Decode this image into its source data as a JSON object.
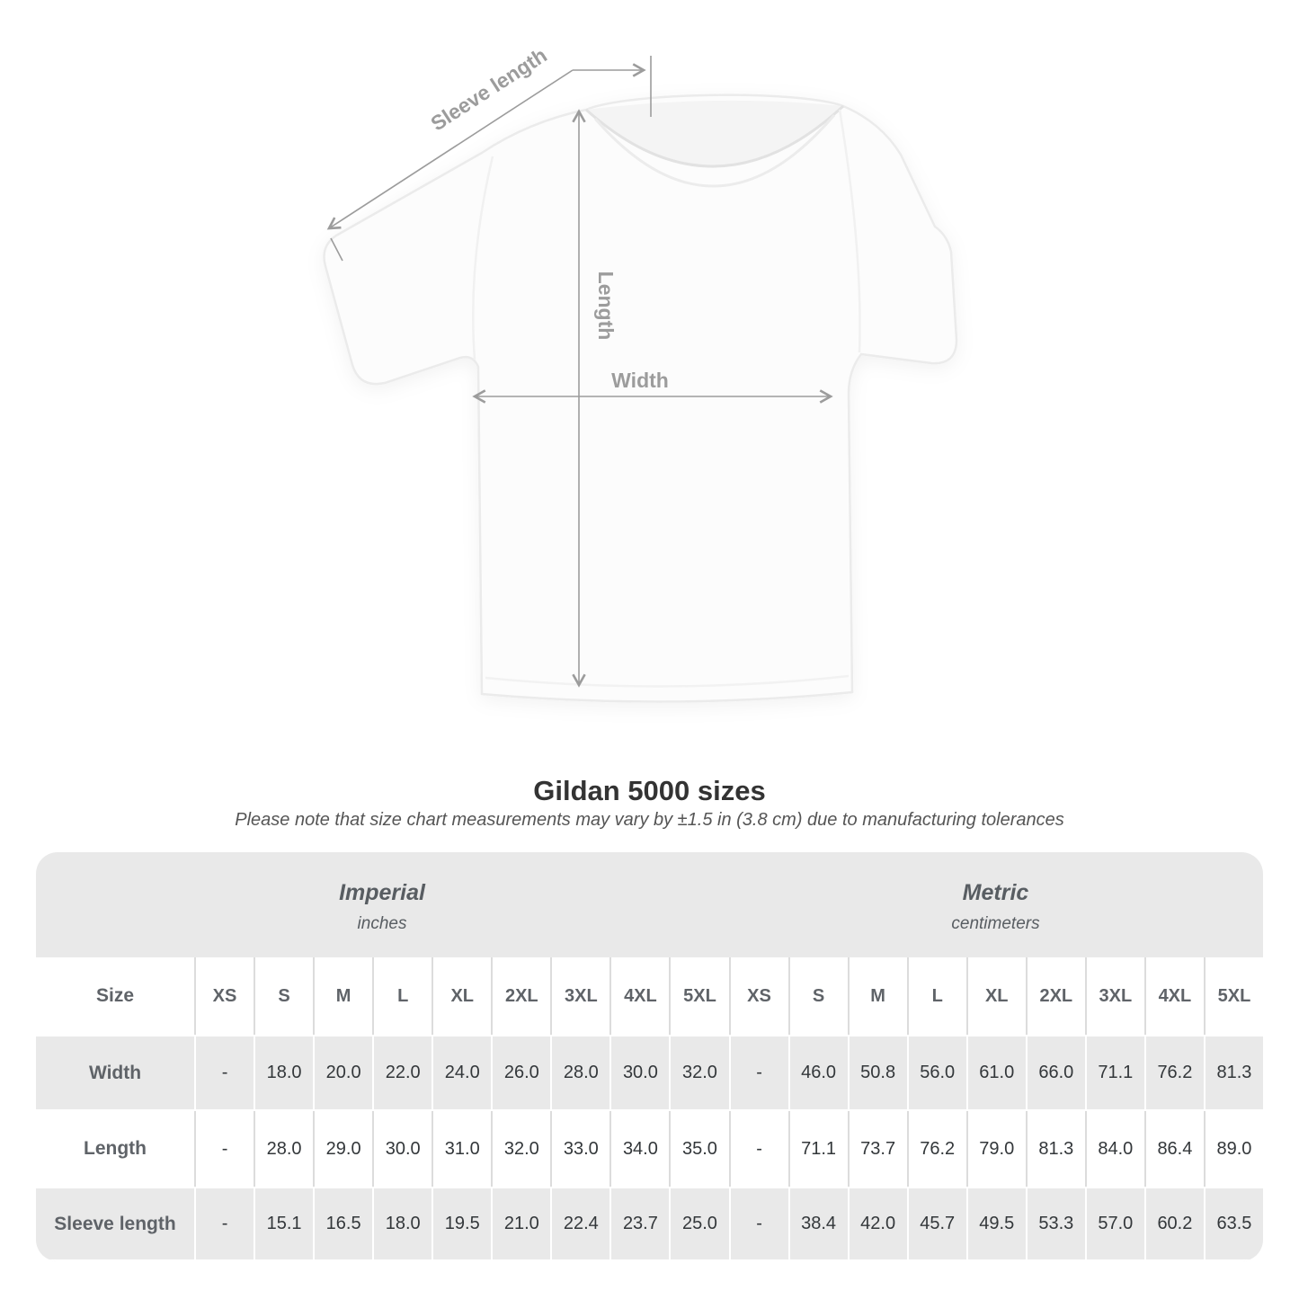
{
  "colors": {
    "band_gray": "#e9e9e9",
    "measure_line_gray": "#9c9c9c",
    "title_text": "#333333",
    "subtitle_text": "#555555",
    "header_text": "#5f6368",
    "value_text": "#33373a"
  },
  "diagram": {
    "sleeve_length_label": "Sleeve length",
    "length_label": "Length",
    "width_label": "Width"
  },
  "title": "Gildan 5000 sizes",
  "subtitle": "Please note that size chart measurements may vary by ±1.5 in (3.8 cm) due to manufacturing tolerances",
  "table": {
    "size_header": "Size",
    "groups": [
      {
        "label": "Imperial",
        "unit": "inches"
      },
      {
        "label": "Metric",
        "unit": "centimeters"
      }
    ],
    "sizes": [
      "XS",
      "S",
      "M",
      "L",
      "XL",
      "2XL",
      "3XL",
      "4XL",
      "5XL"
    ],
    "rows": [
      {
        "label": "Width",
        "imperial": [
          "-",
          "18.0",
          "20.0",
          "22.0",
          "24.0",
          "26.0",
          "28.0",
          "30.0",
          "32.0"
        ],
        "metric": [
          "-",
          "46.0",
          "50.8",
          "56.0",
          "61.0",
          "66.0",
          "71.1",
          "76.2",
          "81.3"
        ]
      },
      {
        "label": "Length",
        "imperial": [
          "-",
          "28.0",
          "29.0",
          "30.0",
          "31.0",
          "32.0",
          "33.0",
          "34.0",
          "35.0"
        ],
        "metric": [
          "-",
          "71.1",
          "73.7",
          "76.2",
          "79.0",
          "81.3",
          "84.0",
          "86.4",
          "89.0"
        ]
      },
      {
        "label": "Sleeve length",
        "imperial": [
          "-",
          "15.1",
          "16.5",
          "18.0",
          "19.5",
          "21.0",
          "22.4",
          "23.7",
          "25.0"
        ],
        "metric": [
          "-",
          "38.4",
          "42.0",
          "45.7",
          "49.5",
          "53.3",
          "57.0",
          "60.2",
          "63.5"
        ]
      }
    ]
  },
  "chart_data": {
    "type": "table",
    "title": "Gildan 5000 sizes",
    "note": "Please note that size chart measurements may vary by ±1.5 in (3.8 cm) due to manufacturing tolerances",
    "column_groups": [
      "Imperial (inches)",
      "Metric (centimeters)"
    ],
    "columns": [
      "Size",
      "XS",
      "S",
      "M",
      "L",
      "XL",
      "2XL",
      "3XL",
      "4XL",
      "5XL",
      "XS",
      "S",
      "M",
      "L",
      "XL",
      "2XL",
      "3XL",
      "4XL",
      "5XL"
    ],
    "rows": [
      [
        "Width",
        "-",
        18.0,
        20.0,
        22.0,
        24.0,
        26.0,
        28.0,
        30.0,
        32.0,
        "-",
        46.0,
        50.8,
        56.0,
        61.0,
        66.0,
        71.1,
        76.2,
        81.3
      ],
      [
        "Length",
        "-",
        28.0,
        29.0,
        30.0,
        31.0,
        32.0,
        33.0,
        34.0,
        35.0,
        "-",
        71.1,
        73.7,
        76.2,
        79.0,
        81.3,
        84.0,
        86.4,
        89.0
      ],
      [
        "Sleeve length",
        "-",
        15.1,
        16.5,
        18.0,
        19.5,
        21.0,
        22.4,
        23.7,
        25.0,
        "-",
        38.4,
        42.0,
        45.7,
        49.5,
        53.3,
        57.0,
        60.2,
        63.5
      ]
    ]
  }
}
